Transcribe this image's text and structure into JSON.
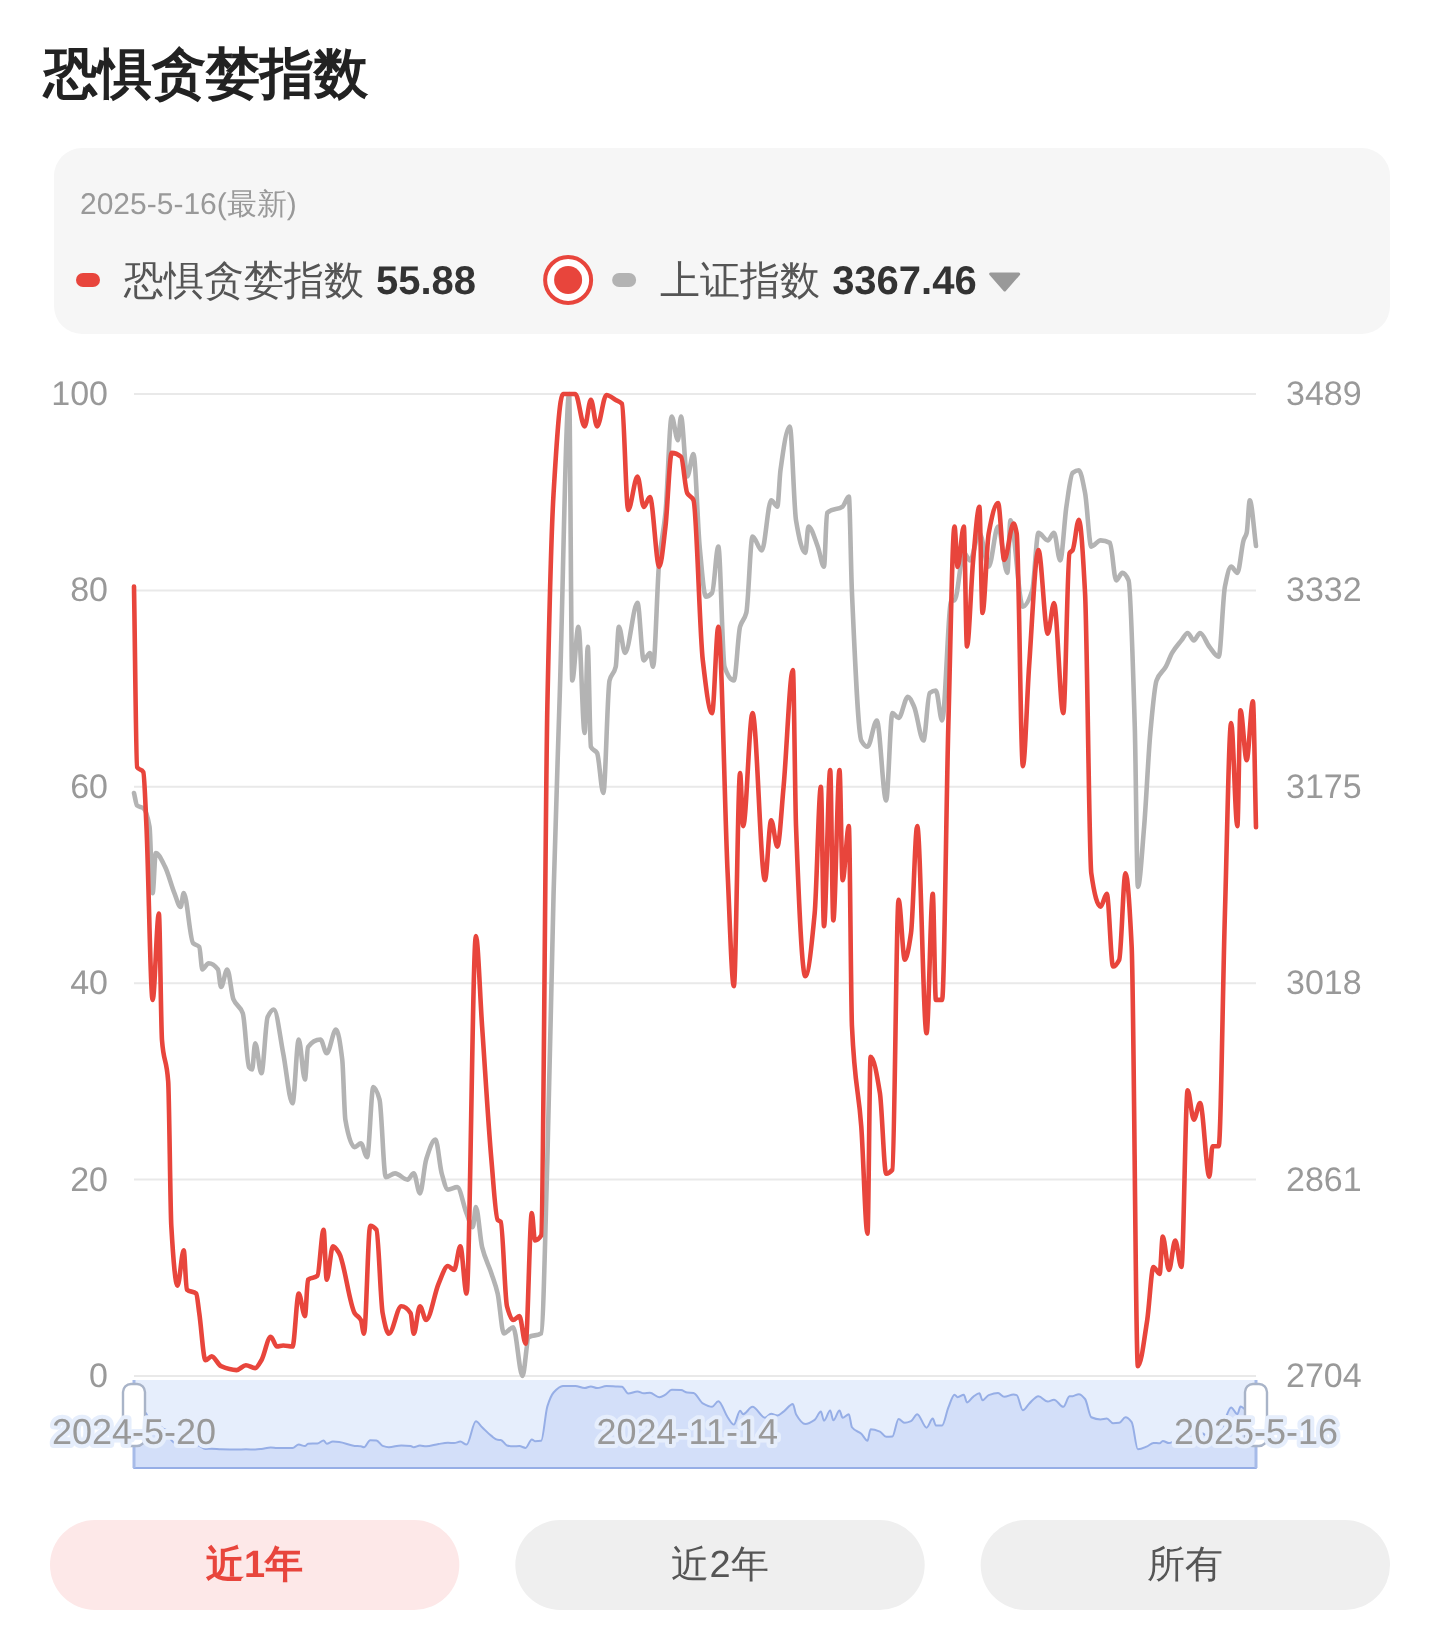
{
  "chart_data": {
    "type": "line",
    "title": "恐惧贪婪指数",
    "subtitle": "2025-5-16(最新)",
    "legend": "top",
    "grid": "y",
    "xlim": [
      "2024-05-20",
      "2025-05-16"
    ],
    "xticks": [
      {
        "value": "2024-05-20",
        "label": "2024-5-20"
      },
      {
        "value": "2024-11-14",
        "label": "2024-11-14"
      },
      {
        "value": "2025-05-16",
        "label": "2025-5-16"
      }
    ],
    "ylim": [
      0,
      100
    ],
    "yticks": [
      0,
      20,
      40,
      60,
      80,
      100
    ],
    "y2lim": [
      2704,
      3489
    ],
    "y2ticks": [
      2704,
      2861,
      3018,
      3175,
      3332,
      3489
    ],
    "series": [
      {
        "name": "恐惧贪婪指数",
        "color": "#e8453c",
        "x": [
          "2024-05-20",
          "2024-05-21",
          "2024-05-23",
          "2024-05-24",
          "2024-05-26",
          "2024-05-28",
          "2024-05-29",
          "2024-05-31",
          "2024-06-01",
          "2024-06-03",
          "2024-06-05",
          "2024-06-06",
          "2024-06-09",
          "2024-06-10",
          "2024-06-12",
          "2024-06-14",
          "2024-06-17",
          "2024-06-22",
          "2024-06-25",
          "2024-06-28",
          "2024-06-30",
          "2024-07-03",
          "2024-07-05",
          "2024-07-07",
          "2024-07-10",
          "2024-07-12",
          "2024-07-14",
          "2024-07-15",
          "2024-07-18",
          "2024-07-20",
          "2024-07-21",
          "2024-07-23",
          "2024-07-25",
          "2024-07-30",
          "2024-08-01",
          "2024-08-02",
          "2024-08-04",
          "2024-08-06",
          "2024-08-08",
          "2024-08-10",
          "2024-08-14",
          "2024-08-17",
          "2024-08-18",
          "2024-08-20",
          "2024-08-22",
          "2024-08-26",
          "2024-08-29",
          "2024-08-31",
          "2024-09-02",
          "2024-09-04",
          "2024-09-07",
          "2024-09-09",
          "2024-09-12",
          "2024-09-14",
          "2024-09-15",
          "2024-09-17",
          "2024-09-19",
          "2024-09-21",
          "2024-09-23",
          "2024-09-25",
          "2024-09-26",
          "2024-09-28",
          "2024-09-30",
          "2024-10-02",
          "2024-10-05",
          "2024-10-09",
          "2024-10-12",
          "2024-10-14",
          "2024-10-16",
          "2024-10-19",
          "2024-10-22",
          "2024-10-24",
          "2024-10-26",
          "2024-10-29",
          "2024-10-31",
          "2024-11-02",
          "2024-11-05",
          "2024-11-07",
          "2024-11-09",
          "2024-11-12",
          "2024-11-14",
          "2024-11-16",
          "2024-11-19",
          "2024-11-22",
          "2024-11-24",
          "2024-11-27",
          "2024-11-29",
          "2024-12-01",
          "2024-12-02",
          "2024-12-05",
          "2024-12-09",
          "2024-12-11",
          "2024-12-13",
          "2024-12-15",
          "2024-12-18",
          "2024-12-19",
          "2024-12-22",
          "2024-12-25",
          "2024-12-27",
          "2024-12-28",
          "2024-12-30",
          "2024-12-31",
          "2025-01-02",
          "2025-01-03",
          "2025-01-05",
          "2025-01-06",
          "2025-01-09",
          "2025-01-11",
          "2025-01-12",
          "2025-01-15",
          "2025-01-17",
          "2025-01-19",
          "2025-01-21",
          "2025-01-23",
          "2025-01-25",
          "2025-01-27",
          "2025-01-30",
          "2025-02-01",
          "2025-02-02",
          "2025-02-04",
          "2025-02-06",
          "2025-02-08",
          "2025-02-09",
          "2025-02-11",
          "2025-02-12",
          "2025-02-14",
          "2025-02-16",
          "2025-02-17",
          "2025-02-19",
          "2025-02-22",
          "2025-02-24",
          "2025-02-27",
          "2025-02-28",
          "2025-03-02",
          "2025-03-04",
          "2025-03-07",
          "2025-03-10",
          "2025-03-12",
          "2025-03-15",
          "2025-03-17",
          "2025-03-18",
          "2025-03-20",
          "2025-03-22",
          "2025-03-24",
          "2025-03-27",
          "2025-03-29",
          "2025-03-31",
          "2025-04-02",
          "2025-04-04",
          "2025-04-06",
          "2025-04-08",
          "2025-04-11",
          "2025-04-13",
          "2025-04-15",
          "2025-04-16",
          "2025-04-18",
          "2025-04-20",
          "2025-04-22",
          "2025-04-24",
          "2025-04-26",
          "2025-04-28",
          "2025-05-01",
          "2025-05-02",
          "2025-05-04",
          "2025-05-06",
          "2025-05-08",
          "2025-05-10",
          "2025-05-11",
          "2025-05-13",
          "2025-05-15",
          "2025-05-16"
        ],
        "values": [
          80.4,
          62,
          61.5,
          56,
          38.3,
          47.1,
          34.2,
          30,
          15.3,
          9.2,
          12.8,
          8.8,
          8.4,
          6.4,
          1.6,
          2,
          1,
          0.6,
          1.1,
          0.8,
          1.6,
          4,
          3,
          3.1,
          3,
          8.4,
          6.1,
          9.8,
          10.2,
          14.9,
          9.8,
          13.2,
          12.5,
          6.4,
          5.7,
          4.3,
          15.3,
          14.9,
          6.4,
          4.3,
          7.1,
          6.4,
          4.3,
          7.1,
          5.7,
          9.4,
          11.2,
          10.8,
          13.2,
          8.4,
          44.8,
          35.6,
          22,
          15.9,
          15.7,
          7.1,
          5.7,
          6.1,
          3.3,
          16.6,
          13.8,
          14.3,
          68.2,
          89.9,
          100,
          100,
          96.7,
          99.4,
          96.7,
          99.9,
          99.4,
          99,
          88.2,
          91.6,
          88.5,
          89.5,
          82.4,
          86.5,
          94,
          93.6,
          89.9,
          89.2,
          72.9,
          67.5,
          76.3,
          51.2,
          39.7,
          61.4,
          56,
          67.5,
          50.5,
          56.6,
          53.9,
          60,
          71.9,
          56,
          40.7,
          47.1,
          60,
          45.8,
          61.7,
          46.4,
          61.7,
          50.5,
          56,
          35.6,
          25.4,
          14.5,
          32.5,
          28.8,
          20.6,
          21,
          48.5,
          42.4,
          45.1,
          56,
          34.9,
          49.1,
          38.3,
          38.3,
          66.1,
          86.5,
          82.4,
          86.5,
          74.3,
          83.1,
          88.5,
          77.7,
          85.8,
          88.9,
          83.1,
          86.8,
          85.8,
          62.1,
          72.3,
          84.1,
          75.6,
          78.7,
          67.5,
          83.8,
          84.1,
          87.2,
          79.7,
          51.2,
          47.8,
          49.1,
          41.7,
          42.4,
          51.2,
          43.7,
          1,
          5.7,
          11.1,
          10.4,
          14.2,
          10.8,
          13.8,
          11.1,
          29.1,
          26.1,
          27.8,
          20.3,
          23.4,
          23.4,
          47.1,
          66.5,
          56,
          67.8,
          62.7,
          68.7,
          55.88
        ]
      },
      {
        "name": "上证指数",
        "color": "#b3b3b3",
        "axis": "y2",
        "x": [
          "2024-05-20",
          "2024-05-21",
          "2024-05-23",
          "2024-05-25",
          "2024-05-26",
          "2024-05-27",
          "2024-05-30",
          "2024-06-02",
          "2024-06-04",
          "2024-06-05",
          "2024-06-08",
          "2024-06-10",
          "2024-06-11",
          "2024-06-13",
          "2024-06-16",
          "2024-06-17",
          "2024-06-19",
          "2024-06-21",
          "2024-06-24",
          "2024-06-26",
          "2024-06-27",
          "2024-06-28",
          "2024-06-30",
          "2024-07-02",
          "2024-07-04",
          "2024-07-07",
          "2024-07-10",
          "2024-07-12",
          "2024-07-14",
          "2024-07-15",
          "2024-07-19",
          "2024-07-21",
          "2024-07-24",
          "2024-07-26",
          "2024-07-27",
          "2024-07-30",
          "2024-08-01",
          "2024-08-03",
          "2024-08-05",
          "2024-08-07",
          "2024-08-09",
          "2024-08-12",
          "2024-08-16",
          "2024-08-18",
          "2024-08-20",
          "2024-08-22",
          "2024-08-25",
          "2024-08-27",
          "2024-08-29",
          "2024-09-01",
          "2024-09-04",
          "2024-09-06",
          "2024-09-07",
          "2024-09-09",
          "2024-09-12",
          "2024-09-14",
          "2024-09-16",
          "2024-09-19",
          "2024-09-22",
          "2024-09-24",
          "2024-09-28",
          "2024-09-30",
          "2024-10-02",
          "2024-10-04",
          "2024-10-07",
          "2024-10-08",
          "2024-10-10",
          "2024-10-12",
          "2024-10-13",
          "2024-10-14",
          "2024-10-16",
          "2024-10-18",
          "2024-10-20",
          "2024-10-22",
          "2024-10-23",
          "2024-10-25",
          "2024-10-29",
          "2024-10-31",
          "2024-11-02",
          "2024-11-03",
          "2024-11-05",
          "2024-11-07",
          "2024-11-09",
          "2024-11-11",
          "2024-11-12",
          "2024-11-14",
          "2024-11-16",
          "2024-11-18",
          "2024-11-20",
          "2024-11-22",
          "2024-11-24",
          "2024-11-26",
          "2024-11-29",
          "2024-12-01",
          "2024-12-03",
          "2024-12-05",
          "2024-12-08",
          "2024-12-11",
          "2024-12-13",
          "2024-12-14",
          "2024-12-17",
          "2024-12-19",
          "2024-12-22",
          "2024-12-23",
          "2024-12-26",
          "2024-12-28",
          "2024-12-29",
          "2025-01-03",
          "2025-01-05",
          "2025-01-06",
          "2025-01-09",
          "2025-01-11",
          "2025-01-14",
          "2025-01-17",
          "2025-01-19",
          "2025-01-21",
          "2025-01-24",
          "2025-01-26",
          "2025-01-29",
          "2025-01-31",
          "2025-02-02",
          "2025-02-04",
          "2025-02-07",
          "2025-02-08",
          "2025-02-11",
          "2025-02-13",
          "2025-02-16",
          "2025-02-19",
          "2025-02-22",
          "2025-02-25",
          "2025-02-26",
          "2025-03-02",
          "2025-03-05",
          "2025-03-07",
          "2025-03-10",
          "2025-03-12",
          "2025-03-14",
          "2025-03-16",
          "2025-03-18",
          "2025-03-20",
          "2025-03-22",
          "2025-03-24",
          "2025-03-27",
          "2025-03-30",
          "2025-04-01",
          "2025-04-03",
          "2025-04-05",
          "2025-04-07",
          "2025-04-08",
          "2025-04-10",
          "2025-04-12",
          "2025-04-14",
          "2025-04-17",
          "2025-04-19",
          "2025-04-22",
          "2025-04-24",
          "2025-04-26",
          "2025-04-28",
          "2025-05-01",
          "2025-05-04",
          "2025-05-06",
          "2025-05-08",
          "2025-05-10",
          "2025-05-12",
          "2025-05-13",
          "2025-05-14",
          "2025-05-16"
        ],
        "values": [
          3170,
          3160,
          3158,
          3143,
          3090,
          3122,
          3111,
          3090,
          3079,
          3090,
          3050,
          3047,
          3029,
          3034,
          3029,
          3015,
          3029,
          3005,
          2994,
          2951,
          2949,
          2970,
          2946,
          2991,
          2997,
          2962,
          2922,
          2973,
          2941,
          2967,
          2973,
          2962,
          2981,
          2957,
          2909,
          2887,
          2890,
          2879,
          2935,
          2925,
          2863,
          2866,
          2861,
          2866,
          2850,
          2877,
          2893,
          2866,
          2853,
          2855,
          2834,
          2823,
          2839,
          2807,
          2786,
          2770,
          2738,
          2743,
          2704,
          2735,
          2738,
          2877,
          3090,
          3250,
          3489,
          3260,
          3303,
          3218,
          3287,
          3207,
          3202,
          3170,
          3260,
          3271,
          3303,
          3282,
          3322,
          3276,
          3282,
          3271,
          3356,
          3394,
          3471,
          3452,
          3471,
          3423,
          3441,
          3367,
          3327,
          3330,
          3367,
          3271,
          3260,
          3303,
          3314,
          3375,
          3364,
          3404,
          3399,
          3428,
          3463,
          3388,
          3362,
          3383,
          3367,
          3351,
          3394,
          3399,
          3407,
          3330,
          3212,
          3207,
          3228,
          3164,
          3234,
          3230,
          3247,
          3239,
          3212,
          3250,
          3252,
          3228,
          3324,
          3324,
          3362,
          3356,
          3378,
          3351,
          3383,
          3346,
          3388,
          3319,
          3332,
          3378,
          3372,
          3378,
          3356,
          3399,
          3426,
          3428,
          3410,
          3367,
          3372,
          3370,
          3340,
          3346,
          3340,
          3223,
          3095,
          3143,
          3218,
          3260,
          3271,
          3282,
          3292,
          3298,
          3292,
          3298,
          3287,
          3279,
          3335,
          3351,
          3346,
          3372,
          3378,
          3404,
          3367.46
        ]
      }
    ],
    "annotations": [
      "55.88",
      "3367.46",
      "近1年",
      "近2年",
      "所有"
    ]
  }
}
